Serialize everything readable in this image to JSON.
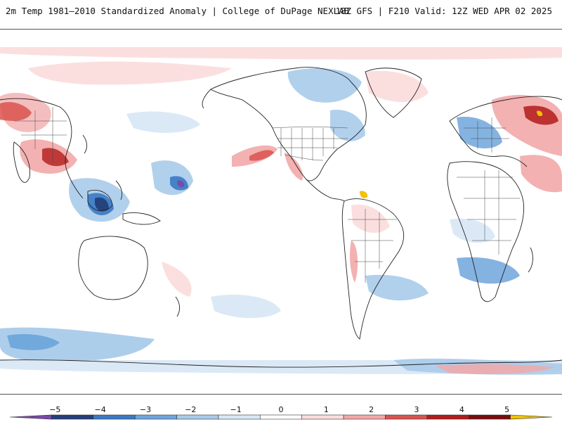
{
  "header": {
    "title": "2m Temp 1981–2010 Standardized Anomaly | College of DuPage NEXLAB",
    "run_info": "18Z GFS | F210 Valid: 12Z WED APR 02 2025"
  },
  "colorbar": {
    "labels": [
      "−5",
      "−4",
      "−3",
      "−2",
      "−1",
      "0",
      "1",
      "2",
      "3",
      "4",
      "5"
    ],
    "values": [
      -5,
      -4,
      -3,
      -2,
      -1,
      0,
      1,
      2,
      3,
      4,
      5
    ],
    "colors": [
      "#7a48a8",
      "#243f7a",
      "#3b79c4",
      "#6ea6dc",
      "#a9cbea",
      "#d9e8f5",
      "#ffffff",
      "#fbdcdc",
      "#f2a8a8",
      "#d9534f",
      "#b31b1b",
      "#7a0c0c",
      "#f2c200"
    ]
  },
  "map": {
    "projection": "global lat-lon",
    "field": "standardized anomaly"
  }
}
